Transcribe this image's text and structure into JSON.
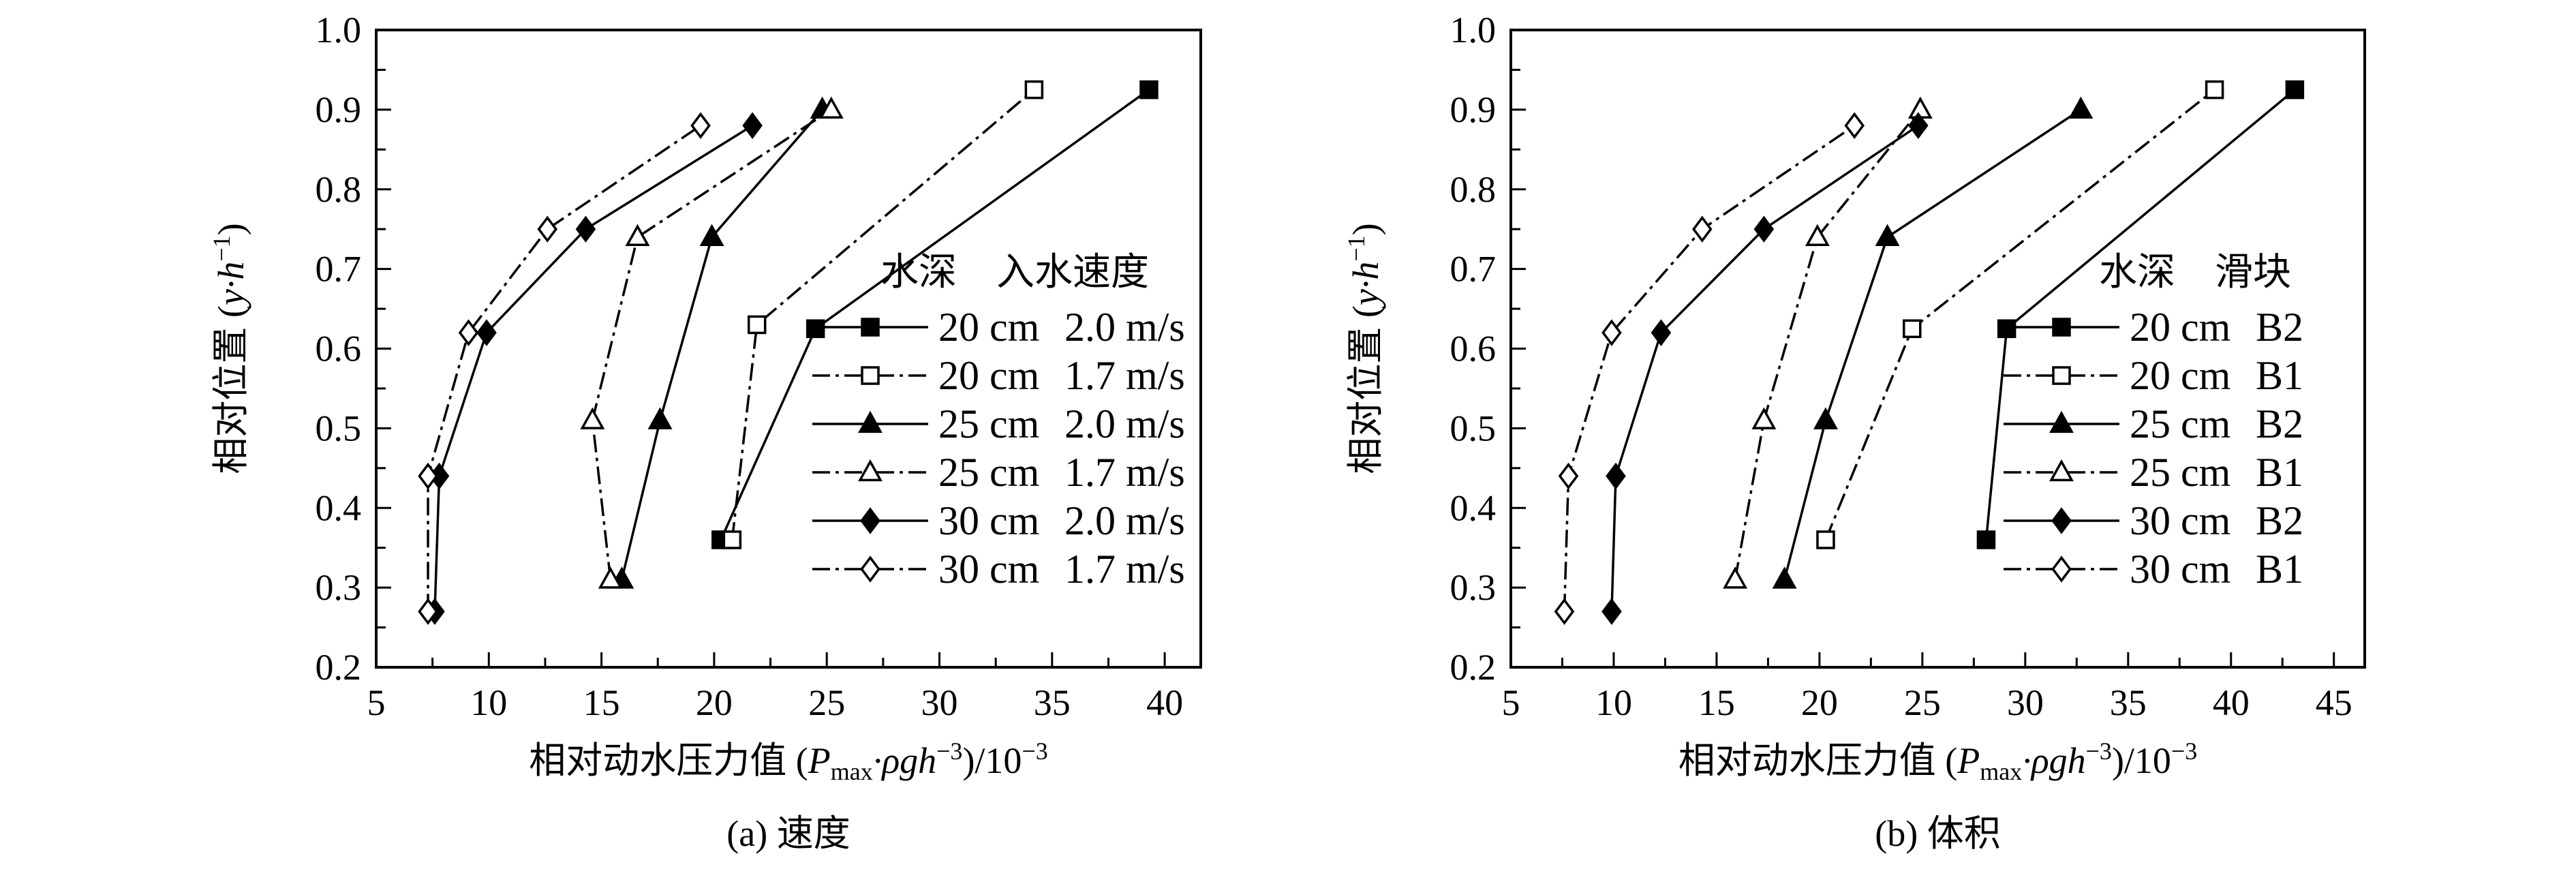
{
  "chart_data": [
    {
      "type": "line",
      "caption": "(a) 速度",
      "xlabel_prefix": "相对动水压力值 (",
      "xlabel_P": "P",
      "xlabel_sub": "max",
      "xlabel_mid": "·ρgh",
      "xlabel_sup": "−3",
      "xlabel_suffix": ")/10",
      "xlabel_sup2": "−3",
      "ylabel_prefix": "相对位置 (",
      "ylabel_var": "y·h",
      "ylabel_sup": "−1",
      "ylabel_suffix": ")",
      "xlim": [
        5,
        41.6
      ],
      "ylim": [
        0.2,
        1.0
      ],
      "xticks": [
        5,
        10,
        15,
        20,
        25,
        30,
        35,
        40
      ],
      "yticks": [
        0.2,
        0.3,
        0.4,
        0.5,
        0.6,
        0.7,
        0.8,
        0.9,
        1.0
      ],
      "grid": false,
      "legend_position": "right",
      "legend_header": [
        "水深",
        "入水速度"
      ],
      "series": [
        {
          "name": "20 cm",
          "cond": "2.0 m/s",
          "marker": "square",
          "filled": true,
          "dash": false,
          "x": [
            20.3,
            24.5,
            39.3
          ],
          "y": [
            0.36,
            0.625,
            0.925
          ]
        },
        {
          "name": "20 cm",
          "cond": "1.7 m/s",
          "marker": "square",
          "filled": false,
          "dash": true,
          "x": [
            20.8,
            21.9,
            34.2
          ],
          "y": [
            0.36,
            0.63,
            0.925
          ]
        },
        {
          "name": "25 cm",
          "cond": "2.0 m/s",
          "marker": "triangle",
          "filled": true,
          "dash": false,
          "x": [
            15.9,
            17.6,
            19.9,
            24.8
          ],
          "y": [
            0.31,
            0.51,
            0.74,
            0.9
          ]
        },
        {
          "name": "25 cm",
          "cond": "1.7 m/s",
          "marker": "triangle",
          "filled": false,
          "dash": true,
          "x": [
            15.4,
            14.6,
            16.6,
            25.2
          ],
          "y": [
            0.31,
            0.51,
            0.74,
            0.9
          ]
        },
        {
          "name": "30 cm",
          "cond": "2.0 m/s",
          "marker": "diamond",
          "filled": true,
          "dash": false,
          "x": [
            7.6,
            7.8,
            9.9,
            14.3,
            21.7
          ],
          "y": [
            0.27,
            0.44,
            0.62,
            0.75,
            0.88
          ]
        },
        {
          "name": "30 cm",
          "cond": "1.7 m/s",
          "marker": "diamond",
          "filled": false,
          "dash": true,
          "x": [
            7.3,
            7.3,
            9.1,
            12.6,
            19.4
          ],
          "y": [
            0.27,
            0.44,
            0.62,
            0.75,
            0.88
          ]
        }
      ]
    },
    {
      "type": "line",
      "caption": "(b) 体积",
      "xlabel_prefix": "相对动水压力值 (",
      "xlabel_P": "P",
      "xlabel_sub": "max",
      "xlabel_mid": "·ρgh",
      "xlabel_sup": "−3",
      "xlabel_suffix": ")/10",
      "xlabel_sup2": "−3",
      "ylabel_prefix": "相对位置 (",
      "ylabel_var": "y·h",
      "ylabel_sup": "−1",
      "ylabel_suffix": ")",
      "xlim": [
        5,
        46.5
      ],
      "ylim": [
        0.2,
        1.0
      ],
      "xticks": [
        5,
        10,
        15,
        20,
        25,
        30,
        35,
        40,
        45
      ],
      "yticks": [
        0.2,
        0.3,
        0.4,
        0.5,
        0.6,
        0.7,
        0.8,
        0.9,
        1.0
      ],
      "grid": false,
      "legend_position": "right",
      "legend_header": [
        "水深",
        "滑块"
      ],
      "series": [
        {
          "name": "20 cm",
          "cond": "B2",
          "marker": "square",
          "filled": true,
          "dash": false,
          "x": [
            28.1,
            29.1,
            43.1
          ],
          "y": [
            0.36,
            0.625,
            0.925
          ]
        },
        {
          "name": "20 cm",
          "cond": "B1",
          "marker": "square",
          "filled": false,
          "dash": true,
          "x": [
            20.3,
            24.5,
            39.2
          ],
          "y": [
            0.36,
            0.625,
            0.925
          ]
        },
        {
          "name": "25 cm",
          "cond": "B2",
          "marker": "triangle",
          "filled": true,
          "dash": false,
          "x": [
            18.3,
            20.3,
            23.3,
            32.7
          ],
          "y": [
            0.31,
            0.51,
            0.74,
            0.9
          ]
        },
        {
          "name": "25 cm",
          "cond": "B1",
          "marker": "triangle",
          "filled": false,
          "dash": true,
          "x": [
            15.9,
            17.3,
            19.9,
            24.9
          ],
          "y": [
            0.31,
            0.51,
            0.74,
            0.9
          ]
        },
        {
          "name": "30 cm",
          "cond": "B2",
          "marker": "diamond",
          "filled": true,
          "dash": false,
          "x": [
            9.9,
            10.1,
            12.3,
            17.3,
            24.8
          ],
          "y": [
            0.27,
            0.44,
            0.62,
            0.75,
            0.88
          ]
        },
        {
          "name": "30 cm",
          "cond": "B1",
          "marker": "diamond",
          "filled": false,
          "dash": true,
          "x": [
            7.6,
            7.8,
            9.9,
            14.3,
            21.7
          ],
          "y": [
            0.27,
            0.44,
            0.62,
            0.75,
            0.88
          ]
        }
      ]
    }
  ]
}
